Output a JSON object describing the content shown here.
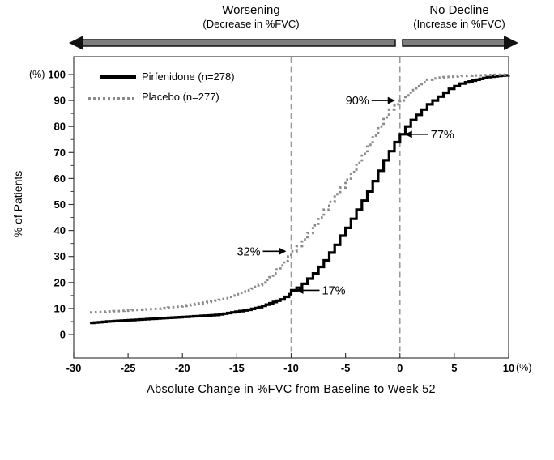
{
  "header": {
    "worsening": {
      "title": "Worsening",
      "subtitle": "(Decrease in %FVC)"
    },
    "no_decline": {
      "title": "No Decline",
      "subtitle": "(Increase in %FVC)"
    }
  },
  "axes": {
    "y_unit": "(%)",
    "x_unit": "(%)",
    "y_title": "% of Patients",
    "x_title": "Absolute Change in %FVC from Baseline to Week 52"
  },
  "colors": {
    "pirfenidone_line": "#000000",
    "placebo_line": "#8a8a8a",
    "reference_dash": "#9a9a9a",
    "box_stroke": "#3c3c3c",
    "arrow_shaft_fill": "#7d7d7d",
    "arrow_outline": "#111111",
    "text": "#000000"
  },
  "chart_data": {
    "type": "line",
    "title": "",
    "xlabel": "Absolute Change in %FVC from Baseline to Week 52",
    "ylabel": "% of Patients",
    "xlim": [
      -30,
      10
    ],
    "ylim": [
      0,
      100
    ],
    "x_ticks": [
      -30,
      -25,
      -20,
      -15,
      -10,
      -5,
      0,
      5,
      10
    ],
    "y_ticks": [
      0,
      10,
      20,
      30,
      40,
      50,
      60,
      70,
      80,
      90,
      100
    ],
    "y_minor_ticks": [
      5,
      15,
      25,
      35,
      45,
      55,
      65,
      75,
      85,
      95
    ],
    "grid": false,
    "legend_position": "top-left",
    "reference_lines_x": [
      -10,
      0
    ],
    "series": [
      {
        "name": "Pirfenidone (n=278)",
        "style": "solid",
        "color": "#000000",
        "points": [
          [
            -28.5,
            4.5
          ],
          [
            -27,
            5
          ],
          [
            -25,
            5.5
          ],
          [
            -23,
            6
          ],
          [
            -21,
            6.5
          ],
          [
            -19,
            7
          ],
          [
            -17,
            7.5
          ],
          [
            -15.5,
            8.5
          ],
          [
            -14,
            9.5
          ],
          [
            -13,
            10.5
          ],
          [
            -12,
            12
          ],
          [
            -11,
            13.5
          ],
          [
            -10.2,
            15.5
          ],
          [
            -10,
            17
          ],
          [
            -9.5,
            18
          ],
          [
            -9,
            19.5
          ],
          [
            -8.5,
            21.5
          ],
          [
            -8,
            23.5
          ],
          [
            -7.5,
            26
          ],
          [
            -7,
            28.5
          ],
          [
            -6.5,
            31.5
          ],
          [
            -6,
            34.5
          ],
          [
            -5.5,
            38
          ],
          [
            -5,
            41
          ],
          [
            -4.5,
            44.5
          ],
          [
            -4,
            48
          ],
          [
            -3.5,
            51.5
          ],
          [
            -3,
            55
          ],
          [
            -2.5,
            59
          ],
          [
            -2,
            63
          ],
          [
            -1.5,
            67
          ],
          [
            -1,
            70.5
          ],
          [
            -0.5,
            74
          ],
          [
            0,
            77
          ],
          [
            0.5,
            80
          ],
          [
            1,
            82.5
          ],
          [
            1.5,
            84.5
          ],
          [
            2,
            86.5
          ],
          [
            2.5,
            88.5
          ],
          [
            3,
            90
          ],
          [
            3.5,
            91.5
          ],
          [
            4,
            93
          ],
          [
            4.5,
            94.5
          ],
          [
            5,
            95.5
          ],
          [
            5.5,
            96.5
          ],
          [
            6,
            97
          ],
          [
            7,
            98
          ],
          [
            8,
            99
          ],
          [
            9,
            99.5
          ],
          [
            10,
            99.8
          ]
        ]
      },
      {
        "name": "Placebo (n=277)",
        "style": "dotted",
        "color": "#8a8a8a",
        "points": [
          [
            -28.5,
            8.5
          ],
          [
            -26,
            9
          ],
          [
            -24,
            9.5
          ],
          [
            -22,
            10
          ],
          [
            -20,
            11
          ],
          [
            -18.5,
            12
          ],
          [
            -17,
            13
          ],
          [
            -16,
            14
          ],
          [
            -15,
            15.5
          ],
          [
            -14,
            17
          ],
          [
            -13,
            19
          ],
          [
            -12,
            22
          ],
          [
            -11,
            26.5
          ],
          [
            -10.3,
            30
          ],
          [
            -10,
            32
          ],
          [
            -9.5,
            34
          ],
          [
            -9,
            36.5
          ],
          [
            -8.5,
            39
          ],
          [
            -8,
            42
          ],
          [
            -7.5,
            45
          ],
          [
            -7,
            48
          ],
          [
            -6.5,
            51
          ],
          [
            -6,
            54
          ],
          [
            -5.5,
            56.5
          ],
          [
            -5,
            59.5
          ],
          [
            -4.5,
            62.5
          ],
          [
            -4,
            66
          ],
          [
            -3.5,
            69.5
          ],
          [
            -3,
            73
          ],
          [
            -2.5,
            76.5
          ],
          [
            -2,
            80
          ],
          [
            -1.5,
            83.5
          ],
          [
            -1,
            86.5
          ],
          [
            -0.5,
            88.5
          ],
          [
            0,
            90
          ],
          [
            0.5,
            92
          ],
          [
            1,
            94
          ],
          [
            1.5,
            95.5
          ],
          [
            2,
            97
          ],
          [
            2.5,
            98
          ],
          [
            3,
            98.5
          ],
          [
            4,
            99
          ],
          [
            5,
            99.3
          ],
          [
            6,
            99.5
          ],
          [
            8,
            99.8
          ],
          [
            10,
            100
          ]
        ]
      }
    ],
    "annotations": [
      {
        "label": "90%",
        "x": 0,
        "y": 90,
        "series": "Placebo (n=277)",
        "side": "left"
      },
      {
        "label": "77%",
        "x": 0,
        "y": 77,
        "series": "Pirfenidone (n=278)",
        "side": "right"
      },
      {
        "label": "32%",
        "x": -10,
        "y": 32,
        "series": "Placebo (n=277)",
        "side": "left"
      },
      {
        "label": "17%",
        "x": -10,
        "y": 17,
        "series": "Pirfenidone (n=278)",
        "side": "right"
      }
    ]
  }
}
